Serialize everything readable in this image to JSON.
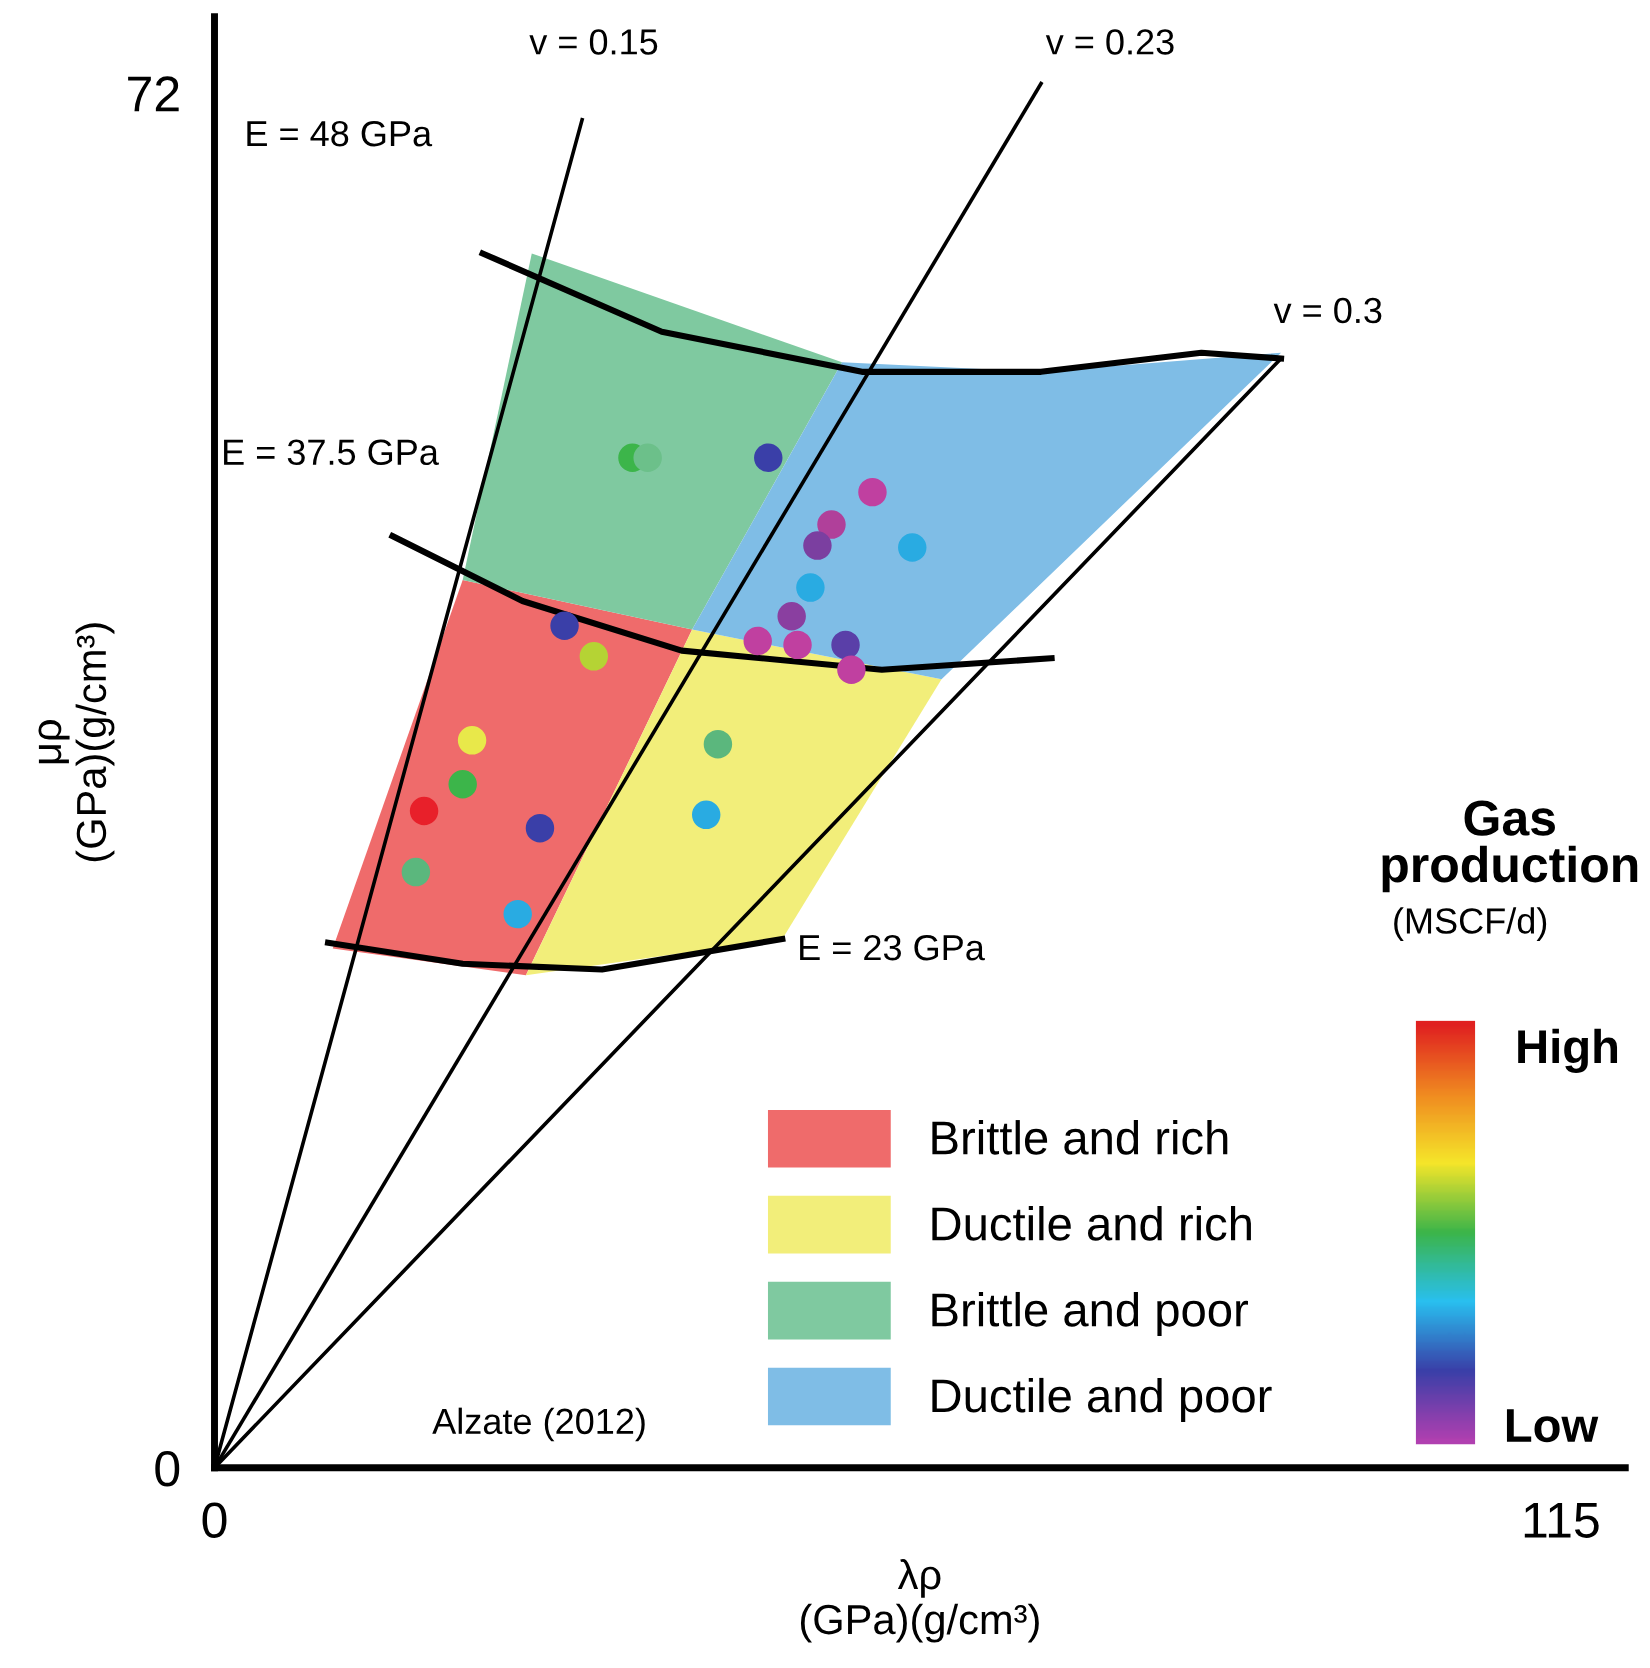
{
  "chart_data": {
    "type": "scatter",
    "xlabel": "λρ\n(GPa)(g/cm³)",
    "ylabel": "μρ\n(GPa)(g/cm³)",
    "xlim": [
      0,
      120.5
    ],
    "ylim": [
      0,
      76
    ],
    "xticks": [
      0,
      115
    ],
    "yticks": [
      0,
      72
    ],
    "grid": false,
    "legend": "bottom right",
    "series": [
      {
        "type": "area",
        "name": "Brittle and rich",
        "color": "#ef6b6b",
        "x": [
          21.2,
          40.8,
          26.6,
          10.1
        ],
        "values": [
          46.5,
          43.9,
          25.8,
          27.2
        ]
      },
      {
        "type": "area",
        "name": "Ductile and rich",
        "color": "#f2ee7a",
        "x": [
          40.8,
          62.1,
          48.5,
          26.6
        ],
        "values": [
          43.9,
          41.3,
          27.7,
          25.8
        ]
      },
      {
        "type": "area",
        "name": "Brittle and poor",
        "color": "#7fc9a0",
        "x": [
          27.1,
          53.6,
          40.8,
          21.2
        ],
        "values": [
          63.6,
          57.9,
          43.9,
          46.5
        ]
      },
      {
        "type": "area",
        "name": "Ductile and poor",
        "color": "#7fbde6",
        "x": [
          53.6,
          70.6,
          91.1,
          62.1,
          40.8
        ],
        "values": [
          57.9,
          57.4,
          58.4,
          41.3,
          43.9
        ]
      },
      {
        "type": "line",
        "color": "#000000",
        "x": [
          0,
          31.4
        ],
        "values": [
          0,
          70.6
        ]
      },
      {
        "type": "line",
        "color": "#000000",
        "x": [
          0,
          70.6
        ],
        "values": [
          0,
          72.5
        ]
      },
      {
        "type": "line",
        "color": "#000000",
        "x": [
          0,
          91.1
        ],
        "values": [
          0,
          58.1
        ]
      },
      {
        "type": "line",
        "color": "#000000",
        "x": [
          22.9,
          38.2,
          55.3,
          70.6,
          84.3,
          91.1
        ],
        "values": [
          63.6,
          59.5,
          57.4,
          57.4,
          58.4,
          58.1
        ]
      },
      {
        "type": "line",
        "color": "#000000",
        "x": [
          15.2,
          26.3,
          39.9,
          57.0,
          71.5
        ],
        "values": [
          48.8,
          45.4,
          42.8,
          41.8,
          42.4
        ]
      },
      {
        "type": "line",
        "color": "#000000",
        "x": [
          9.7,
          21.2,
          33.1,
          48.5
        ],
        "values": [
          27.5,
          26.4,
          26.1,
          27.7
        ]
      },
      {
        "marker": "circle",
        "x": [
          35.7,
          37.0,
          47.3,
          56.2,
          59.6,
          52.7,
          51.5,
          50.9,
          49.3,
          46.4,
          49.8,
          53.9,
          54.4,
          29.9,
          32.4,
          22.0,
          21.2,
          17.9,
          17.2,
          27.8,
          43.0,
          42.0,
          25.9
        ],
        "values": [
          52.9,
          52.9,
          52.9,
          51.1,
          48.2,
          49.4,
          48.3,
          46.1,
          44.6,
          43.3,
          43.1,
          43.1,
          41.8,
          44.1,
          42.5,
          38.1,
          35.8,
          34.4,
          31.2,
          33.5,
          37.9,
          34.2,
          29.0
        ],
        "colors": [
          "#3cb54a",
          "#6cc08a",
          "#3a3fa8",
          "#c040a0",
          "#29abe2",
          "#b0409a",
          "#7b3fa0",
          "#29abe2",
          "#8a3fa0",
          "#c040a0",
          "#c040a0",
          "#5a3fa8",
          "#c040a0",
          "#3a3fa8",
          "#b5d334",
          "#e8e84a",
          "#3cb54a",
          "#e8202a",
          "#5bb77d",
          "#3a3fa8",
          "#5bb77d",
          "#29abe2",
          "#29abe2"
        ]
      }
    ],
    "annotations": [
      "v = 0.15",
      "v = 0.23",
      "v = 0.3",
      "E = 48 GPa",
      "E = 37.5 GPa",
      "E = 23 GPa",
      "Alzate (2012)",
      "Gas production",
      "(MSCF/d)",
      "High",
      "Low"
    ]
  }
}
